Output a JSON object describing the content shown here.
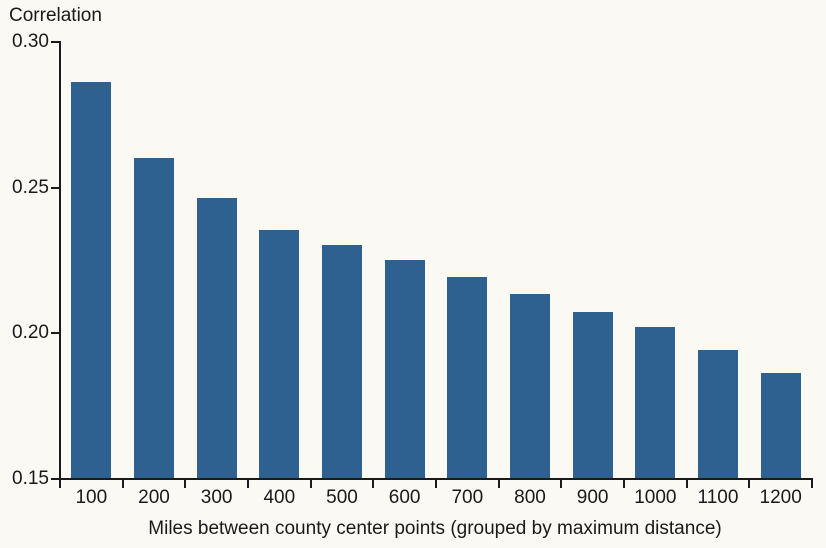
{
  "chart_data": {
    "type": "bar",
    "title": "Correlation",
    "xlabel": "Miles between county center points (grouped by maximum distance)",
    "ylabel": "Correlation",
    "categories": [
      "100",
      "200",
      "300",
      "400",
      "500",
      "600",
      "700",
      "800",
      "900",
      "1000",
      "1100",
      "1200"
    ],
    "values": [
      0.286,
      0.26,
      0.246,
      0.235,
      0.23,
      0.225,
      0.219,
      0.213,
      0.207,
      0.202,
      0.194,
      0.186
    ],
    "ylim": [
      0.15,
      0.3
    ],
    "yticks": [
      0.3,
      0.25,
      0.2,
      0.15
    ],
    "ytick_labels": [
      "0.30",
      "0.25",
      "0.20",
      "0.15"
    ],
    "grid": false,
    "legend": "none",
    "colors": {
      "bar": "#2E6190",
      "axis": "#1a1a1a",
      "text": "#1a1a1a",
      "background": "#FBF9F3"
    }
  }
}
